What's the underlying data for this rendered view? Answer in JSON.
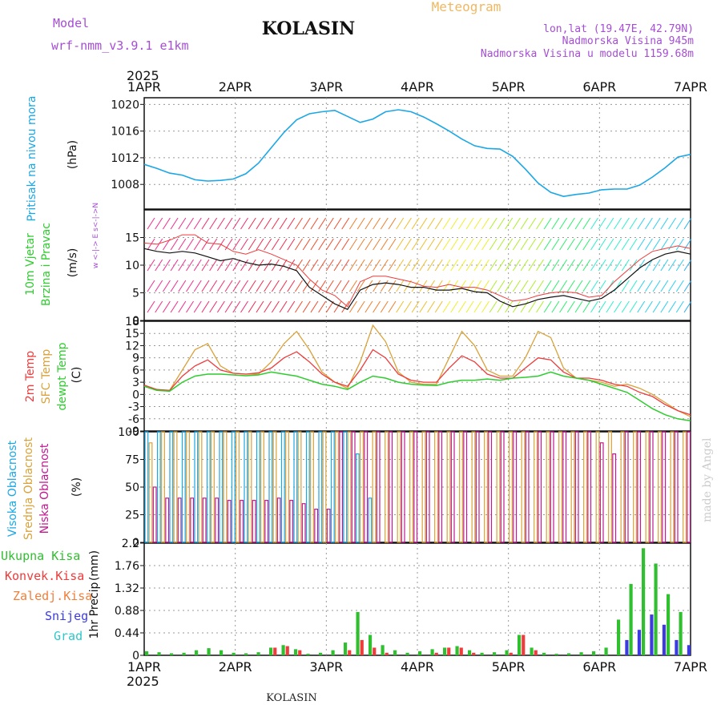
{
  "header": {
    "model_label": "Model",
    "model_name": "wrf-nmm_v3.9.1 e1km",
    "station": "KOLASIN",
    "product": "Meteogram",
    "lonlat": "lon,lat (19.47E, 42.79N)",
    "altitude": "Nadmorska Visina 945m",
    "model_altitude": "Nadmorska Visina u modelu 1159.68m",
    "year": "2025",
    "footer_station": "KOLASIN",
    "credit": "made by Angel"
  },
  "colors": {
    "pressure": "#1ba7e6",
    "temp2m": "#ef3b3b",
    "sfc_temp": "#d9a23a",
    "dewpoint": "#2fcc2f",
    "high_cloud": "#1ba7e6",
    "mid_cloud": "#d9a23a",
    "low_cloud": "#c2188f",
    "total_precip": "#2fbf2f",
    "conv_precip": "#ef3b3b",
    "frozen_precip": "#ef7f3b",
    "snow": "#3b3be0",
    "graupel": "#2ec8c8",
    "wind_label": "#2fcc2f",
    "wind_dir_label": "#a64dd6"
  },
  "chart_data": [
    {
      "type": "line",
      "panel": "pressure",
      "ylabel_left": "Pritisak na nivou mora",
      "unit": "(hPa)",
      "x_ticks": [
        "1APR",
        "2APR",
        "3APR",
        "4APR",
        "5APR",
        "6APR",
        "7APR"
      ],
      "ylim": [
        1004.3,
        1021
      ],
      "y_ticks": [
        1008,
        1012,
        1016,
        1020
      ],
      "grid": true,
      "series": [
        {
          "values": [
            1011.0,
            1010.4,
            1009.7,
            1009.4,
            1008.7,
            1008.5,
            1008.6,
            1008.8,
            1009.6,
            1011.2,
            1013.5,
            1015.8,
            1017.7,
            1018.6,
            1018.9,
            1019.1,
            1018.2,
            1017.3,
            1017.8,
            1018.9,
            1019.2,
            1018.9,
            1018.1,
            1017.1,
            1016.0,
            1014.8,
            1013.8,
            1013.4,
            1013.3,
            1012.2,
            1010.3,
            1008.2,
            1006.8,
            1006.2,
            1006.5,
            1006.7,
            1007.2,
            1007.3,
            1007.3,
            1007.9,
            1009.1,
            1010.5,
            1012.1,
            1012.5
          ]
        }
      ]
    },
    {
      "type": "line",
      "panel": "wind",
      "ylabel_left": [
        "10m Vjetar",
        "Brzina i Pravac"
      ],
      "unit": "(m/s)",
      "direction_legend": "w <-|-> E  s<-|->N",
      "ylim": [
        0,
        20
      ],
      "y_ticks": [
        0,
        5,
        10,
        15
      ],
      "grid": true,
      "series": [
        {
          "values": [
            13,
            12.5,
            12.2,
            12.5,
            12.2,
            11.5,
            10.8,
            11.2,
            10.5,
            10.0,
            10.2,
            9.8,
            9.0,
            6.0,
            4.5,
            3.0,
            2.0,
            5.5,
            6.5,
            6.8,
            6.5,
            6.0,
            6.0,
            5.5,
            5.5,
            5.8,
            5.2,
            5.0,
            3.5,
            2.5,
            3.0,
            3.8,
            4.2,
            4.5,
            4.0,
            3.5,
            4.0,
            5.5,
            7.5,
            9.5,
            11.0,
            12.0,
            12.5,
            12.0
          ]
        },
        {
          "values": [
            14,
            13.8,
            14.5,
            15.5,
            15.5,
            14.0,
            13.8,
            12.5,
            12.0,
            12.8,
            12.0,
            11.0,
            10.0,
            7.5,
            5.5,
            4.5,
            2.5,
            7.0,
            8.0,
            8.0,
            7.5,
            7.0,
            6.2,
            6.0,
            6.5,
            6.0,
            6.0,
            5.5,
            4.5,
            3.5,
            3.8,
            4.5,
            5.0,
            5.2,
            5.0,
            4.2,
            4.5,
            7.0,
            9.0,
            11.0,
            12.5,
            13.0,
            13.5,
            13.0
          ]
        }
      ]
    },
    {
      "type": "line",
      "panel": "temperature",
      "ylabel_left": [
        "2m Temp",
        "SFC Temp",
        "dewpt Temp"
      ],
      "unit": "(C)",
      "ylim": [
        -9,
        18
      ],
      "y_ticks": [
        -9,
        -6,
        -3,
        0,
        3,
        6,
        9,
        12,
        15,
        18
      ],
      "grid": true,
      "series": [
        {
          "name": "2m Temp",
          "values": [
            2.3,
            1.2,
            1.0,
            4.5,
            7.0,
            8.5,
            6.0,
            5.2,
            5.0,
            5.3,
            6.5,
            9.0,
            10.5,
            8.0,
            5.0,
            3.0,
            2.0,
            6.0,
            11.0,
            9.0,
            5.0,
            3.5,
            3.0,
            3.0,
            6.5,
            9.5,
            8.0,
            5.0,
            4.0,
            4.0,
            6.5,
            9.0,
            8.5,
            5.5,
            4.0,
            4.0,
            3.5,
            2.5,
            2.0,
            0.5,
            -0.5,
            -2.5,
            -4.0,
            -5.0
          ]
        },
        {
          "name": "SFC Temp",
          "values": [
            2.0,
            1.0,
            1.0,
            6.0,
            11.0,
            12.5,
            7.0,
            5.2,
            5.0,
            5.0,
            8.0,
            12.5,
            15.5,
            11.0,
            5.5,
            3.0,
            1.5,
            8.0,
            17.0,
            13.0,
            5.5,
            3.0,
            2.5,
            2.5,
            9.0,
            15.5,
            12.0,
            6.0,
            4.5,
            4.5,
            9.0,
            15.5,
            14.0,
            6.5,
            4.0,
            3.5,
            3.0,
            2.0,
            2.5,
            1.5,
            0.0,
            -2.0,
            -4.0,
            -5.5
          ]
        },
        {
          "name": "dewpt Temp",
          "values": [
            2.0,
            1.0,
            0.8,
            3.0,
            4.5,
            5.0,
            5.0,
            4.8,
            4.6,
            4.8,
            5.5,
            5.0,
            4.5,
            3.5,
            2.5,
            2.0,
            1.2,
            3.0,
            4.5,
            4.0,
            3.0,
            2.5,
            2.3,
            2.2,
            3.0,
            3.5,
            3.5,
            3.8,
            3.5,
            4.0,
            4.2,
            4.5,
            5.5,
            4.5,
            4.0,
            3.5,
            2.5,
            1.5,
            0.5,
            -1.5,
            -3.5,
            -5.0,
            -6.0,
            -6.5
          ]
        }
      ]
    },
    {
      "type": "bar",
      "panel": "cloud",
      "ylabel_left": [
        "Visoka Oblacnost",
        "Srednja Oblacnost",
        "Niska Oblacnost"
      ],
      "unit": "(%)",
      "ylim": [
        0,
        100
      ],
      "y_ticks": [
        0,
        25,
        50,
        75,
        100
      ],
      "grid": true,
      "series": [
        {
          "name": "Visoka Oblacnost",
          "values": [
            100,
            100,
            100,
            100,
            100,
            100,
            100,
            100,
            100,
            100,
            100,
            100,
            100,
            100,
            100,
            100,
            100,
            80,
            40,
            0,
            0,
            0,
            0,
            0,
            0,
            0,
            0,
            0,
            0,
            0,
            0,
            0,
            0,
            0,
            0,
            0,
            0,
            0,
            0,
            0,
            0,
            0,
            0,
            0
          ]
        },
        {
          "name": "Srednja Oblacnost",
          "values": [
            90,
            100,
            100,
            100,
            100,
            100,
            100,
            100,
            100,
            100,
            100,
            100,
            100,
            100,
            100,
            100,
            100,
            100,
            100,
            100,
            100,
            100,
            100,
            100,
            100,
            100,
            100,
            100,
            100,
            100,
            100,
            100,
            100,
            100,
            100,
            100,
            100,
            100,
            100,
            100,
            100,
            100,
            100,
            100
          ]
        },
        {
          "name": "Niska Oblacnost",
          "values": [
            50,
            40,
            40,
            40,
            40,
            40,
            38,
            38,
            38,
            38,
            40,
            38,
            35,
            30,
            30,
            100,
            100,
            100,
            100,
            100,
            100,
            100,
            100,
            100,
            100,
            100,
            100,
            100,
            100,
            100,
            100,
            100,
            100,
            100,
            100,
            100,
            90,
            80,
            100,
            100,
            100,
            100,
            100,
            100
          ]
        }
      ]
    },
    {
      "type": "bar",
      "panel": "precip",
      "ylabel_left": "1hr Precip",
      "unit": "(mm)",
      "legend": [
        "Ukupna Kisa",
        "Konvek.Kisa",
        "Zaledj.Kisa",
        "Snijeg",
        "Grad"
      ],
      "ylim": [
        0,
        2.2
      ],
      "y_ticks": [
        0,
        0.44,
        0.88,
        1.32,
        1.76,
        2.2
      ],
      "grid": true,
      "series": [
        {
          "name": "Ukupna Kisa",
          "values": [
            0.08,
            0.06,
            0.04,
            0.05,
            0.1,
            0.14,
            0.1,
            0.05,
            0.04,
            0.06,
            0.15,
            0.2,
            0.12,
            0.03,
            0.05,
            0.1,
            0.25,
            0.85,
            0.4,
            0.2,
            0.1,
            0.05,
            0.08,
            0.12,
            0.15,
            0.18,
            0.1,
            0.05,
            0.06,
            0.1,
            0.4,
            0.15,
            0.05,
            0.03,
            0.04,
            0.06,
            0.08,
            0.15,
            0.7,
            1.4,
            2.1,
            1.8,
            1.2,
            0.85
          ]
        },
        {
          "name": "Konvek.Kisa",
          "values": [
            0,
            0,
            0,
            0,
            0,
            0,
            0,
            0,
            0,
            0,
            0.15,
            0.18,
            0.1,
            0,
            0,
            0,
            0.1,
            0.3,
            0.15,
            0.05,
            0,
            0,
            0,
            0.05,
            0.15,
            0.15,
            0.05,
            0,
            0,
            0.05,
            0.4,
            0.1,
            0,
            0,
            0,
            0,
            0,
            0,
            0,
            0,
            0,
            0,
            0,
            0
          ]
        },
        {
          "name": "Snijeg",
          "values": [
            0,
            0,
            0,
            0,
            0,
            0,
            0,
            0,
            0,
            0,
            0,
            0,
            0,
            0,
            0,
            0,
            0,
            0,
            0,
            0,
            0,
            0,
            0,
            0,
            0,
            0,
            0,
            0,
            0,
            0,
            0,
            0,
            0,
            0,
            0,
            0,
            0,
            0,
            0.3,
            0.5,
            0.8,
            0.6,
            0.3,
            0.2
          ]
        }
      ]
    }
  ]
}
